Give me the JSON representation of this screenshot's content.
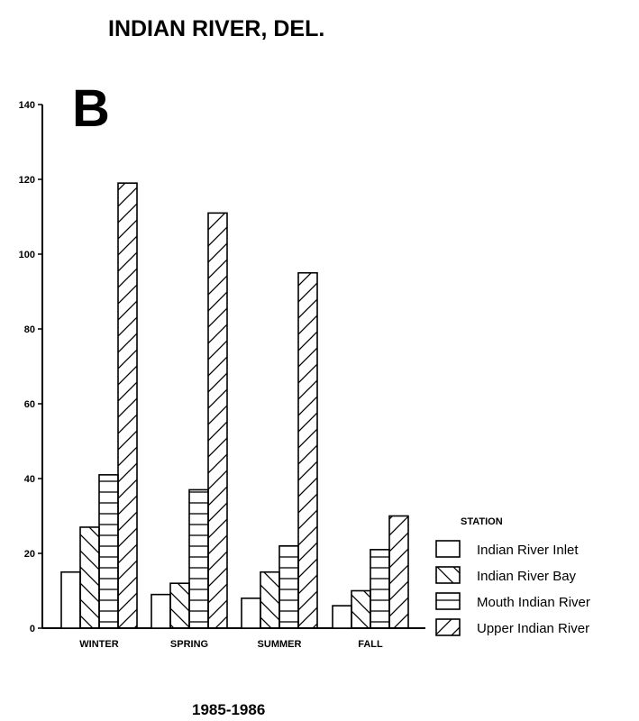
{
  "chart_data": {
    "type": "bar",
    "title": "INDIAN RIVER, DEL.",
    "panel_label": "B",
    "xlabel": "1985-1986",
    "ylabel": "",
    "ylim": [
      0,
      140
    ],
    "yticks": [
      0,
      20,
      40,
      60,
      80,
      100,
      120,
      140
    ],
    "categories": [
      "WINTER",
      "SPRING",
      "SUMMER",
      "FALL"
    ],
    "legend_title": "STATION",
    "legend_position": "right",
    "series": [
      {
        "name": "Indian River Inlet",
        "pattern": "none",
        "values": [
          15,
          9,
          8,
          6
        ]
      },
      {
        "name": "Indian River Bay",
        "pattern": "diagonal-down",
        "values": [
          27,
          12,
          15,
          10
        ]
      },
      {
        "name": "Mouth Indian River",
        "pattern": "horizontal",
        "values": [
          41,
          37,
          22,
          21
        ]
      },
      {
        "name": "Upper Indian River",
        "pattern": "diagonal-up",
        "values": [
          119,
          111,
          95,
          30
        ]
      }
    ],
    "colors": {
      "ink": "#000000",
      "background": "#ffffff"
    }
  }
}
